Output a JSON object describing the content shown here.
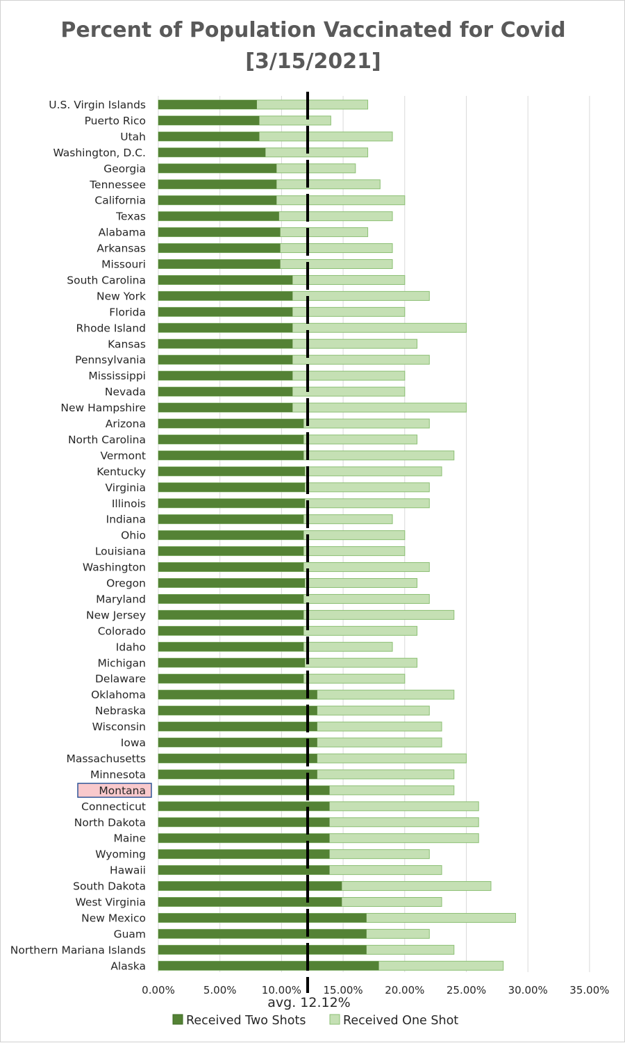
{
  "chart_data": {
    "type": "bar",
    "orientation": "horizontal",
    "stacked": false,
    "overlapped": true,
    "title_line1": "Percent of Population Vaccinated for Covid",
    "title_line2": "[3/15/2021]",
    "categories": [
      "U.S. Virgin Islands",
      "Puerto Rico",
      "Utah",
      "Washington, D.C.",
      "Georgia",
      "Tennessee",
      "California",
      "Texas",
      "Alabama",
      "Arkansas",
      "Missouri",
      "South Carolina",
      "New York",
      "Florida",
      "Rhode Island",
      "Kansas",
      "Pennsylvania",
      "Mississippi",
      "Nevada",
      "New Hampshire",
      "Arizona",
      "North Carolina",
      "Vermont",
      "Kentucky",
      "Virginia",
      "Illinois",
      "Indiana",
      "Ohio",
      "Louisiana",
      "Washington",
      "Oregon",
      "Maryland",
      "New Jersey",
      "Colorado",
      "Idaho",
      "Michigan",
      "Delaware",
      "Oklahoma",
      "Nebraska",
      "Wisconsin",
      "Iowa",
      "Massachusetts",
      "Minnesota",
      "Montana",
      "Connecticut",
      "North Dakota",
      "Maine",
      "Wyoming",
      "Hawaii",
      "South Dakota",
      "West Virginia",
      "New Mexico",
      "Guam",
      "Northern Mariana Islands",
      "Alaska"
    ],
    "series": [
      {
        "name": "Received Two Shots",
        "color": "#548235",
        "values": [
          8,
          8.2,
          8.2,
          8.7,
          9.6,
          9.6,
          9.6,
          9.8,
          9.9,
          9.9,
          9.9,
          10.9,
          10.9,
          10.9,
          10.9,
          10.9,
          10.9,
          10.9,
          10.9,
          10.9,
          11.8,
          11.8,
          11.8,
          11.9,
          11.9,
          11.9,
          11.8,
          11.8,
          11.8,
          11.8,
          11.9,
          11.8,
          11.8,
          11.8,
          11.8,
          11.9,
          11.8,
          12.9,
          12.9,
          12.9,
          12.9,
          12.9,
          12.9,
          13.9,
          13.9,
          13.9,
          13.9,
          13.9,
          13.9,
          14.9,
          14.9,
          16.9,
          16.9,
          16.9,
          17.9
        ]
      },
      {
        "name": "Received One Shot",
        "color": "#c5e0b4",
        "values": [
          17,
          14,
          19,
          17,
          16,
          18,
          20,
          19,
          17,
          19,
          19,
          20,
          22,
          20,
          25,
          21,
          22,
          20,
          20,
          25,
          22,
          21,
          24,
          23,
          22,
          22,
          19,
          20,
          20,
          22,
          21,
          22,
          24,
          21,
          19,
          21,
          20,
          24,
          22,
          23,
          23,
          25,
          24,
          24,
          26,
          26,
          26,
          22,
          23,
          27,
          23,
          29,
          22,
          24,
          28
        ]
      }
    ],
    "average": {
      "value": 12.12,
      "label": "avg. 12.12%"
    },
    "highlighted_category": "Montana",
    "x_ticks": [
      "0.00%",
      "5.00%",
      "10.00%",
      "15.00%",
      "20.00%",
      "25.00%",
      "30.00%",
      "35.00%"
    ],
    "xlim": [
      0,
      35
    ],
    "grid": "vertical",
    "legend_position": "bottom"
  }
}
